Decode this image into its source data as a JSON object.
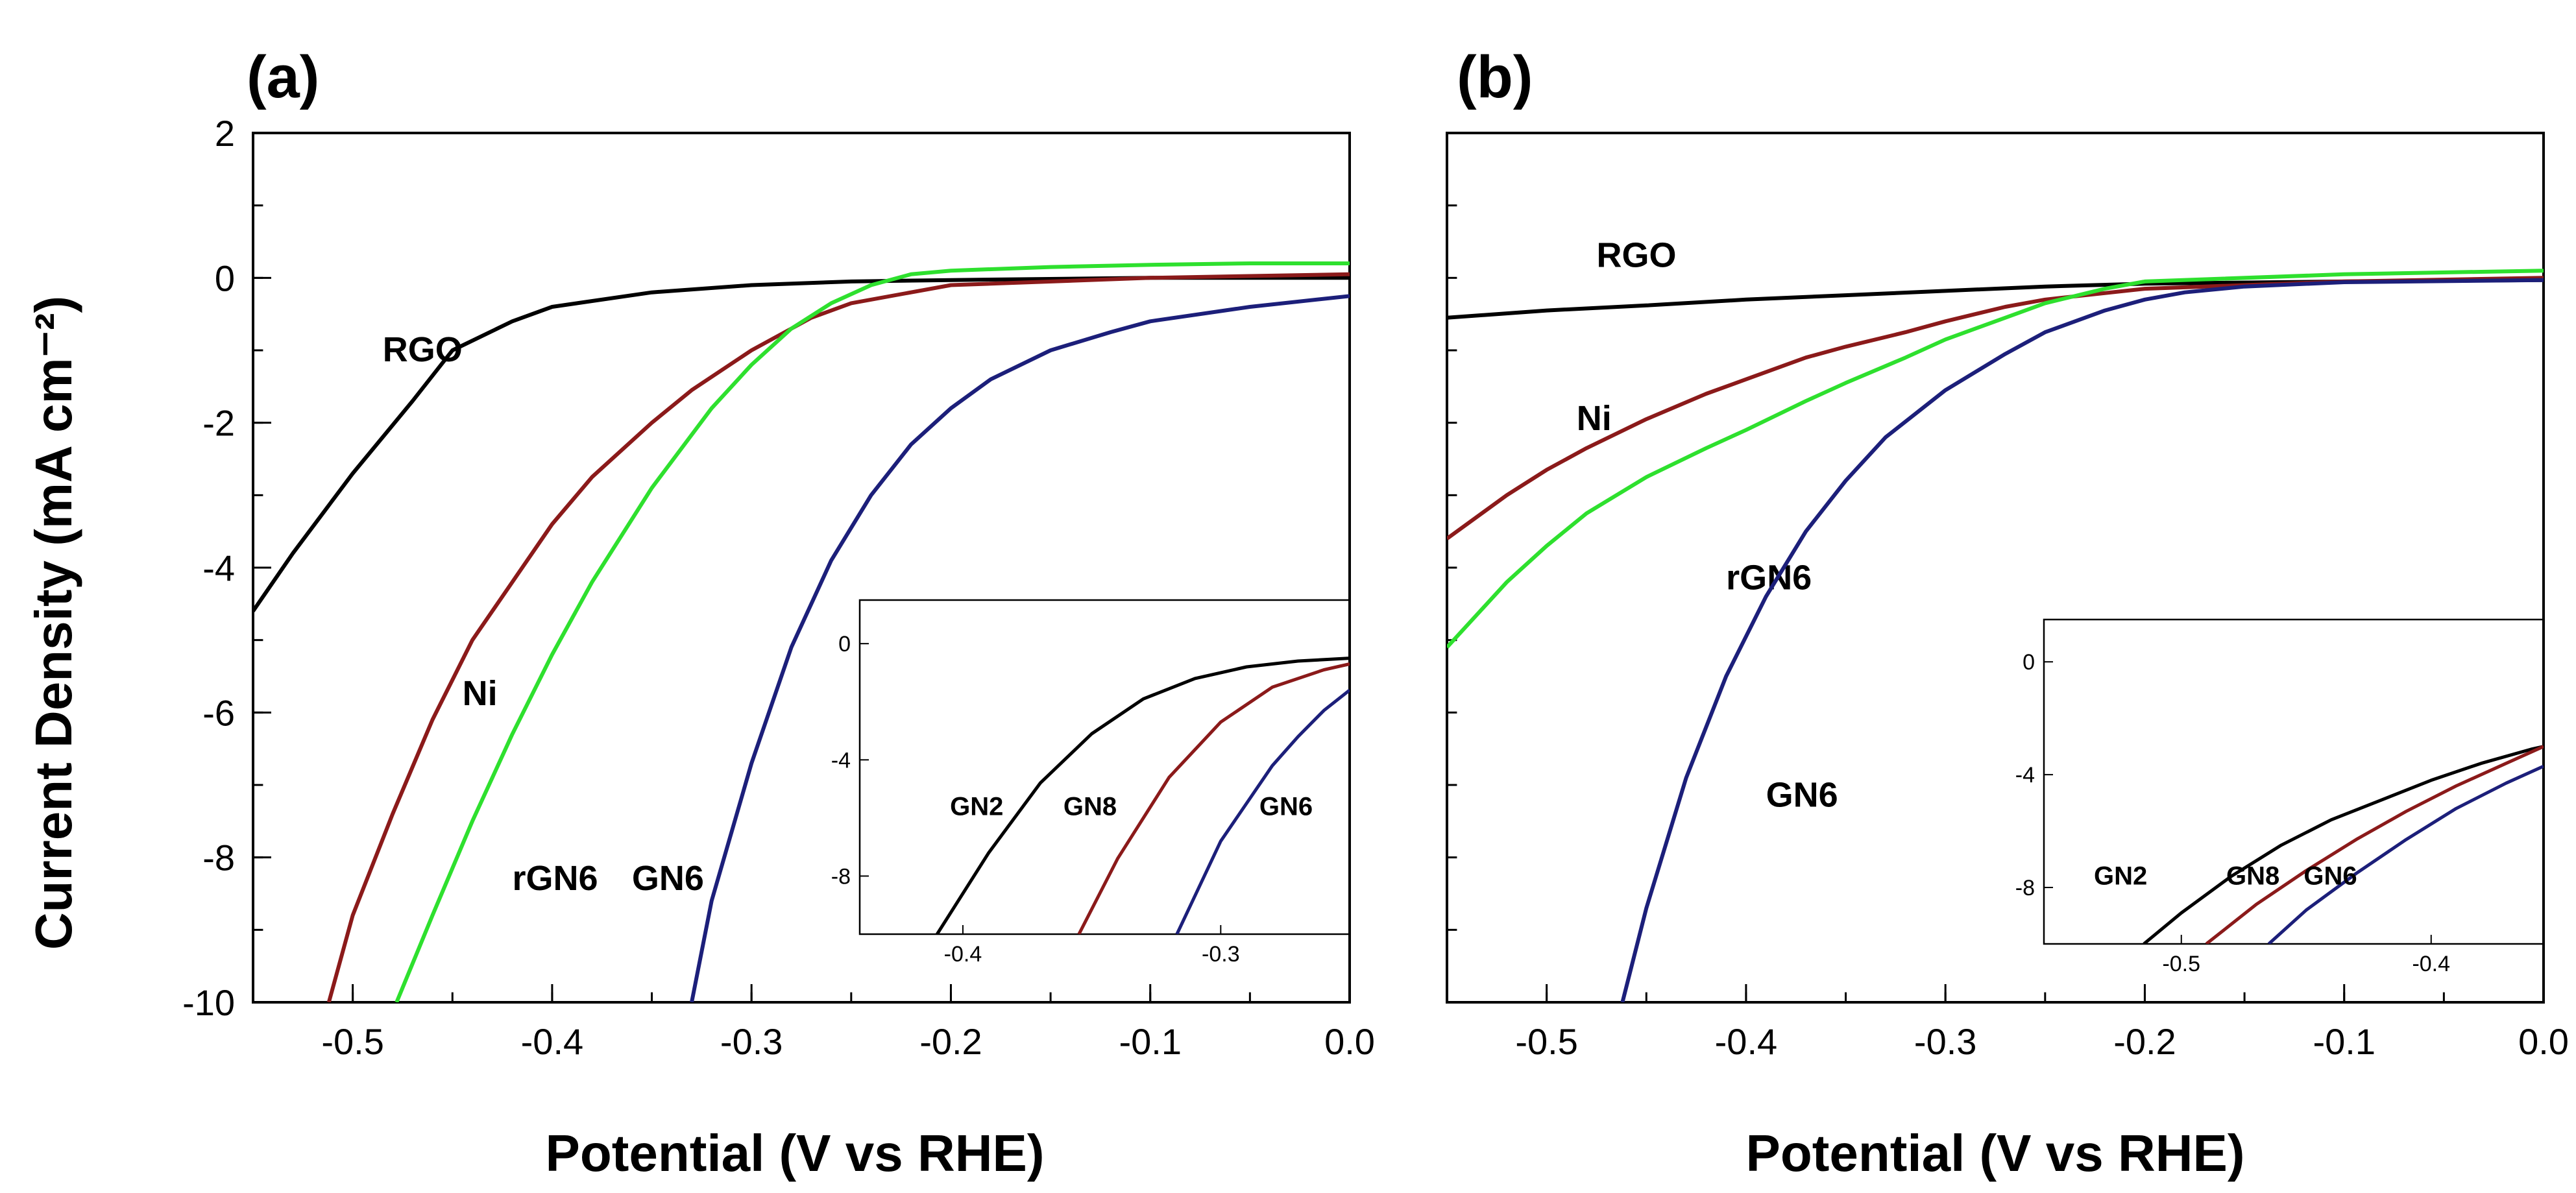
{
  "y_axis_title": "Current Density (mA cm⁻²)",
  "colors": {
    "RGO": "#000000",
    "Ni": "#8b1a1a",
    "rGN6": "#2ee02e",
    "GN6": "#1c1f7a",
    "GN2": "#000000",
    "GN8": "#8b1a1a"
  },
  "chart_data": [
    {
      "panel": "(a)",
      "type": "line",
      "xlabel": "Potential (V vs RHE)",
      "ylabel": "Current Density (mA cm⁻²)",
      "xlim": [
        -0.55,
        0.0
      ],
      "ylim": [
        -10,
        2
      ],
      "xticks": [
        -0.5,
        -0.4,
        -0.3,
        -0.2,
        -0.1,
        0.0
      ],
      "xtick_labels": [
        "-0.5",
        "-0.4",
        "-0.3",
        "-0.2",
        "-0.1",
        "0.0"
      ],
      "yticks": [
        2,
        0,
        -2,
        -4,
        -6,
        -8,
        -10
      ],
      "ytick_labels": [
        "2",
        "0",
        "-2",
        "-4",
        "-6",
        "-8",
        "-10"
      ],
      "series": [
        {
          "name": "RGO",
          "x": [
            -0.55,
            -0.53,
            -0.5,
            -0.47,
            -0.45,
            -0.42,
            -0.4,
            -0.35,
            -0.3,
            -0.25,
            -0.2,
            -0.1,
            0.0
          ],
          "y": [
            -4.6,
            -3.8,
            -2.7,
            -1.7,
            -1.0,
            -0.6,
            -0.4,
            -0.2,
            -0.1,
            -0.05,
            -0.03,
            0.0,
            0.0
          ],
          "label_text": "RGO",
          "label_at": [
            -0.485,
            -1.15
          ]
        },
        {
          "name": "Ni",
          "x": [
            -0.512,
            -0.5,
            -0.48,
            -0.46,
            -0.44,
            -0.42,
            -0.4,
            -0.38,
            -0.35,
            -0.33,
            -0.3,
            -0.27,
            -0.25,
            -0.2,
            -0.1,
            0.0
          ],
          "y": [
            -10,
            -8.8,
            -7.4,
            -6.1,
            -5.0,
            -4.2,
            -3.4,
            -2.75,
            -2.0,
            -1.55,
            -1.0,
            -0.55,
            -0.35,
            -0.1,
            0.0,
            0.05
          ],
          "label_text": "Ni",
          "label_at": [
            -0.445,
            -5.9
          ]
        },
        {
          "name": "rGN6",
          "x": [
            -0.478,
            -0.46,
            -0.44,
            -0.42,
            -0.4,
            -0.38,
            -0.35,
            -0.32,
            -0.3,
            -0.28,
            -0.26,
            -0.24,
            -0.22,
            -0.2,
            -0.15,
            -0.1,
            -0.05,
            0.0
          ],
          "y": [
            -10,
            -8.8,
            -7.5,
            -6.3,
            -5.2,
            -4.2,
            -2.9,
            -1.8,
            -1.2,
            -0.7,
            -0.35,
            -0.1,
            0.05,
            0.1,
            0.15,
            0.18,
            0.2,
            0.2
          ],
          "label_text": "rGN6",
          "label_at": [
            -0.42,
            -8.45
          ]
        },
        {
          "name": "GN6",
          "x": [
            -0.33,
            -0.32,
            -0.3,
            -0.28,
            -0.26,
            -0.24,
            -0.22,
            -0.2,
            -0.18,
            -0.15,
            -0.12,
            -0.1,
            -0.05,
            0.0
          ],
          "y": [
            -10,
            -8.6,
            -6.7,
            -5.1,
            -3.9,
            -3.0,
            -2.3,
            -1.8,
            -1.4,
            -1.0,
            -0.75,
            -0.6,
            -0.4,
            -0.25
          ],
          "label_text": "GN6",
          "label_at": [
            -0.36,
            -8.45
          ]
        }
      ],
      "inset": {
        "xlim": [
          -0.44,
          -0.25
        ],
        "ylim": [
          -10,
          1.5
        ],
        "xticks": [
          -0.4,
          -0.3
        ],
        "xtick_labels": [
          "-0.4",
          "-0.3"
        ],
        "yticks": [
          0,
          -4,
          -8
        ],
        "ytick_labels": [
          "0",
          "-4",
          "-8"
        ],
        "series": [
          {
            "name": "GN2",
            "x": [
              -0.41,
              -0.39,
              -0.37,
              -0.35,
              -0.33,
              -0.31,
              -0.29,
              -0.27,
              -0.25
            ],
            "y": [
              -10,
              -7.2,
              -4.8,
              -3.1,
              -1.9,
              -1.2,
              -0.8,
              -0.6,
              -0.5
            ],
            "label_text": "GN2",
            "label_at": [
              -0.405,
              -5.9
            ]
          },
          {
            "name": "GN8",
            "x": [
              -0.355,
              -0.34,
              -0.32,
              -0.3,
              -0.28,
              -0.26,
              -0.25
            ],
            "y": [
              -10,
              -7.4,
              -4.6,
              -2.7,
              -1.5,
              -0.9,
              -0.7
            ],
            "label_text": "GN8",
            "label_at": [
              -0.361,
              -5.9
            ]
          },
          {
            "name": "GN6",
            "x": [
              -0.317,
              -0.3,
              -0.28,
              -0.27,
              -0.26,
              -0.25
            ],
            "y": [
              -10,
              -6.8,
              -4.2,
              -3.2,
              -2.3,
              -1.6
            ],
            "label_text": "GN6",
            "label_at": [
              -0.285,
              -5.9
            ]
          }
        ]
      }
    },
    {
      "panel": "(b)",
      "type": "line",
      "xlabel": "Potential (V vs RHE)",
      "ylabel": "",
      "xlim": [
        -0.55,
        0.0
      ],
      "ylim": [
        -10,
        2
      ],
      "xticks": [
        -0.5,
        -0.4,
        -0.3,
        -0.2,
        -0.1,
        0.0
      ],
      "xtick_labels": [
        "-0.5",
        "-0.4",
        "-0.3",
        "-0.2",
        "-0.1",
        "0.0"
      ],
      "series": [
        {
          "name": "RGO",
          "x": [
            -0.55,
            -0.5,
            -0.45,
            -0.4,
            -0.35,
            -0.3,
            -0.25,
            -0.2,
            -0.1,
            0.0
          ],
          "y": [
            -0.55,
            -0.45,
            -0.38,
            -0.3,
            -0.24,
            -0.18,
            -0.12,
            -0.08,
            -0.05,
            -0.03
          ],
          "label_text": "RGO",
          "label_at": [
            -0.475,
            0.15
          ]
        },
        {
          "name": "Ni",
          "x": [
            -0.55,
            -0.52,
            -0.5,
            -0.48,
            -0.45,
            -0.42,
            -0.4,
            -0.37,
            -0.35,
            -0.32,
            -0.3,
            -0.27,
            -0.25,
            -0.2,
            -0.1,
            0.0
          ],
          "y": [
            -3.6,
            -3.0,
            -2.65,
            -2.35,
            -1.95,
            -1.6,
            -1.4,
            -1.1,
            -0.95,
            -0.75,
            -0.6,
            -0.4,
            -0.3,
            -0.15,
            -0.05,
            0.0
          ],
          "label_text": "Ni",
          "label_at": [
            -0.485,
            -2.1
          ]
        },
        {
          "name": "rGN6",
          "x": [
            -0.55,
            -0.52,
            -0.5,
            -0.48,
            -0.45,
            -0.42,
            -0.4,
            -0.37,
            -0.35,
            -0.32,
            -0.3,
            -0.27,
            -0.25,
            -0.22,
            -0.2,
            -0.1,
            0.0
          ],
          "y": [
            -5.1,
            -4.2,
            -3.7,
            -3.25,
            -2.75,
            -2.35,
            -2.1,
            -1.7,
            -1.45,
            -1.1,
            -0.85,
            -0.55,
            -0.35,
            -0.15,
            -0.05,
            0.05,
            0.1
          ],
          "label_text": "rGN6",
          "label_at": [
            -0.41,
            -4.3
          ]
        },
        {
          "name": "GN6",
          "x": [
            -0.462,
            -0.45,
            -0.43,
            -0.41,
            -0.39,
            -0.37,
            -0.35,
            -0.33,
            -0.3,
            -0.27,
            -0.25,
            -0.22,
            -0.2,
            -0.18,
            -0.15,
            -0.1,
            0.0
          ],
          "y": [
            -10,
            -8.7,
            -6.9,
            -5.5,
            -4.4,
            -3.5,
            -2.8,
            -2.2,
            -1.55,
            -1.05,
            -0.75,
            -0.45,
            -0.3,
            -0.2,
            -0.12,
            -0.06,
            -0.03
          ],
          "label_text": "GN6",
          "label_at": [
            -0.39,
            -7.3
          ]
        }
      ],
      "inset": {
        "xlim": [
          -0.555,
          -0.355
        ],
        "ylim": [
          -10,
          1.5
        ],
        "xticks": [
          -0.5,
          -0.4
        ],
        "xtick_labels": [
          "-0.5",
          "-0.4"
        ],
        "yticks": [
          0,
          -4,
          -8
        ],
        "ytick_labels": [
          "0",
          "-4",
          "-8"
        ],
        "series": [
          {
            "name": "GN2",
            "x": [
              -0.515,
              -0.5,
              -0.48,
              -0.46,
              -0.44,
              -0.42,
              -0.4,
              -0.38,
              -0.36,
              -0.355
            ],
            "y": [
              -10,
              -8.9,
              -7.6,
              -6.5,
              -5.6,
              -4.9,
              -4.2,
              -3.6,
              -3.1,
              -3.0
            ],
            "label_text": "GN2",
            "label_at": [
              -0.535,
              -7.9
            ]
          },
          {
            "name": "GN8",
            "x": [
              -0.49,
              -0.47,
              -0.45,
              -0.43,
              -0.41,
              -0.39,
              -0.37,
              -0.355
            ],
            "y": [
              -10,
              -8.6,
              -7.4,
              -6.3,
              -5.3,
              -4.4,
              -3.6,
              -3.0
            ],
            "label_text": "GN8",
            "label_at": [
              -0.482,
              -7.9
            ]
          },
          {
            "name": "GN6",
            "x": [
              -0.465,
              -0.45,
              -0.43,
              -0.41,
              -0.39,
              -0.37,
              -0.355
            ],
            "y": [
              -10,
              -8.8,
              -7.5,
              -6.3,
              -5.2,
              -4.3,
              -3.7
            ],
            "label_text": "GN6",
            "label_at": [
              -0.451,
              -7.9
            ]
          }
        ]
      }
    }
  ]
}
